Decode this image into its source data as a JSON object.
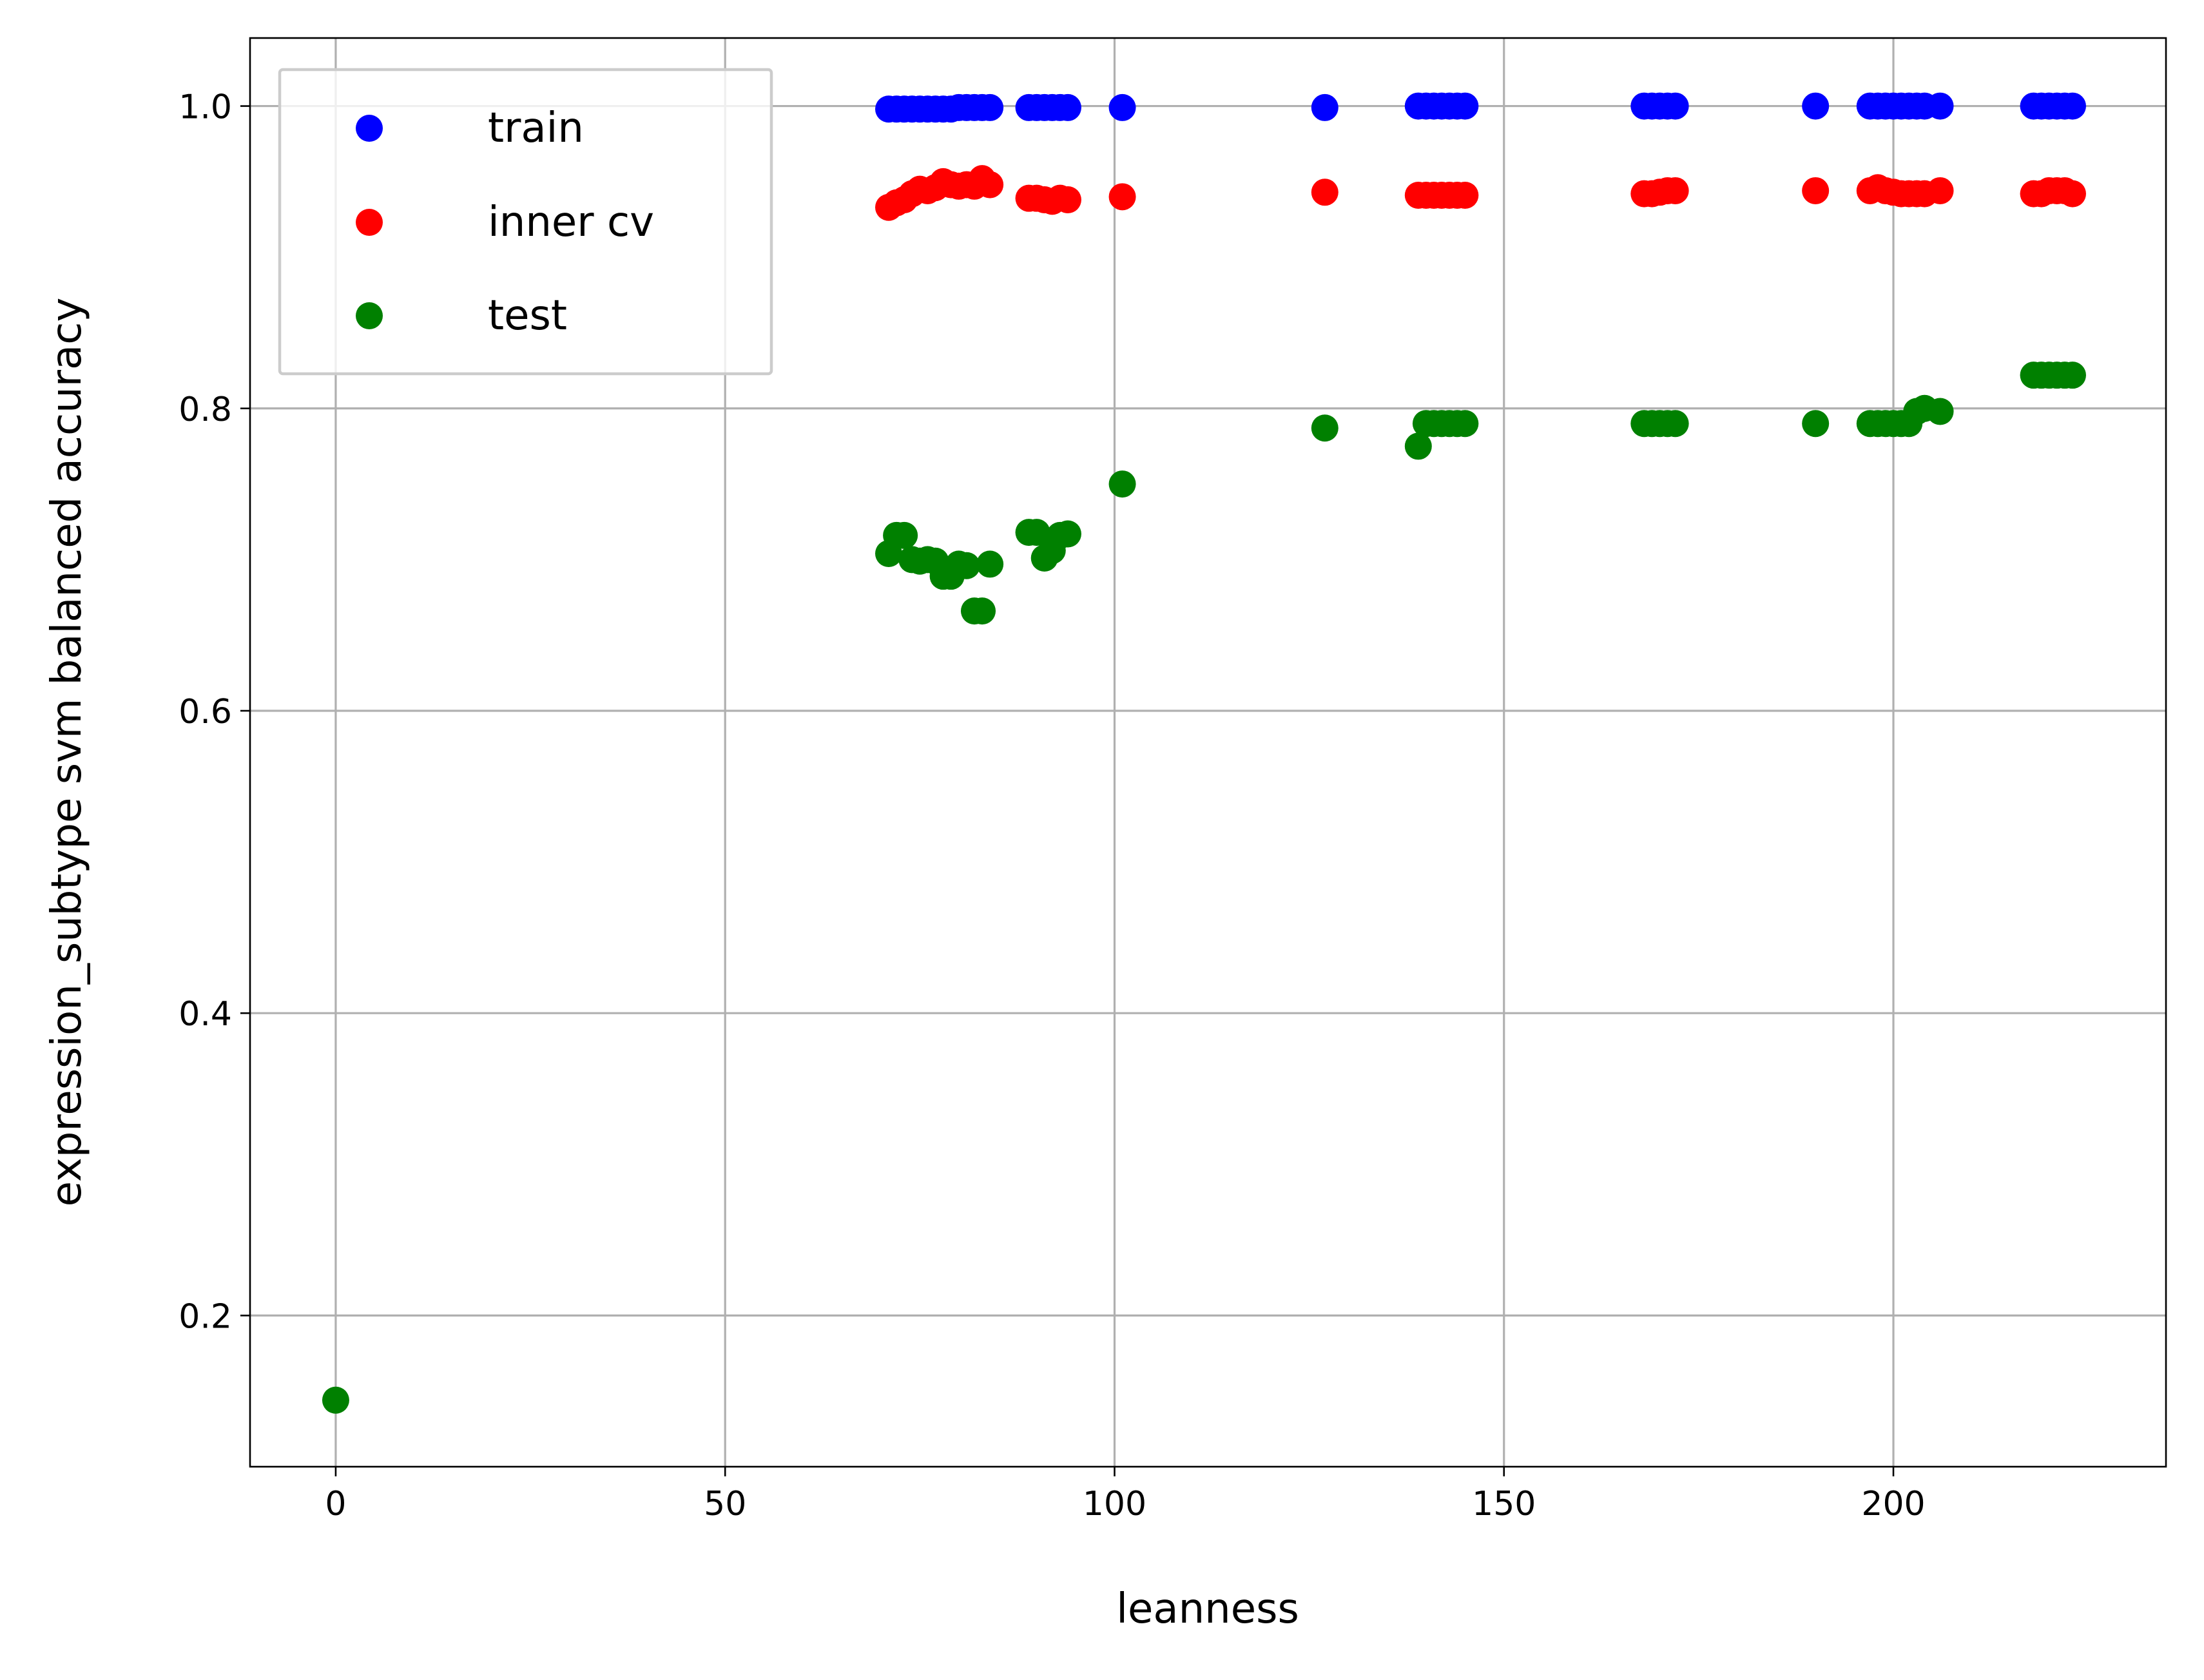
{
  "chart_data": {
    "type": "scatter",
    "title": "",
    "xlabel": "leanness",
    "ylabel": "expression_subtype svm balanced accuracy",
    "xlim": [
      -11,
      235
    ],
    "ylim": [
      0.1,
      1.045
    ],
    "xticks": [
      0,
      50,
      100,
      150,
      200
    ],
    "xtick_labels": [
      "0",
      "50",
      "100",
      "150",
      "200"
    ],
    "yticks": [
      0.2,
      0.4,
      0.6,
      0.8,
      1.0
    ],
    "ytick_labels": [
      "0.2",
      "0.4",
      "0.6",
      "0.8",
      "1.0"
    ],
    "grid": true,
    "legend_position": "top-left",
    "series": [
      {
        "name": "train",
        "color": "#0000ff",
        "points": [
          [
            71,
            0.998
          ],
          [
            72,
            0.998
          ],
          [
            73,
            0.998
          ],
          [
            74,
            0.998
          ],
          [
            75,
            0.998
          ],
          [
            76,
            0.998
          ],
          [
            77,
            0.998
          ],
          [
            78,
            0.998
          ],
          [
            79,
            0.998
          ],
          [
            80,
            0.999
          ],
          [
            81,
            0.999
          ],
          [
            82,
            0.999
          ],
          [
            83,
            0.999
          ],
          [
            84,
            0.999
          ],
          [
            89,
            0.999
          ],
          [
            90,
            0.999
          ],
          [
            91,
            0.999
          ],
          [
            92,
            0.999
          ],
          [
            93,
            0.999
          ],
          [
            94,
            0.999
          ],
          [
            101,
            0.999
          ],
          [
            127,
            0.999
          ],
          [
            139,
            1.0
          ],
          [
            140,
            1.0
          ],
          [
            141,
            1.0
          ],
          [
            142,
            1.0
          ],
          [
            143,
            1.0
          ],
          [
            144,
            1.0
          ],
          [
            145,
            1.0
          ],
          [
            168,
            1.0
          ],
          [
            169,
            1.0
          ],
          [
            170,
            1.0
          ],
          [
            171,
            1.0
          ],
          [
            172,
            1.0
          ],
          [
            190,
            1.0
          ],
          [
            197,
            1.0
          ],
          [
            198,
            1.0
          ],
          [
            199,
            1.0
          ],
          [
            200,
            1.0
          ],
          [
            201,
            1.0
          ],
          [
            202,
            1.0
          ],
          [
            203,
            1.0
          ],
          [
            204,
            1.0
          ],
          [
            206,
            1.0
          ],
          [
            218,
            1.0
          ],
          [
            219,
            1.0
          ],
          [
            220,
            1.0
          ],
          [
            221,
            1.0
          ],
          [
            222,
            1.0
          ],
          [
            223,
            1.0
          ]
        ]
      },
      {
        "name": "inner cv",
        "color": "#ff0000",
        "points": [
          [
            71,
            0.933
          ],
          [
            72,
            0.936
          ],
          [
            73,
            0.938
          ],
          [
            74,
            0.942
          ],
          [
            75,
            0.945
          ],
          [
            76,
            0.944
          ],
          [
            77,
            0.946
          ],
          [
            78,
            0.95
          ],
          [
            79,
            0.948
          ],
          [
            80,
            0.947
          ],
          [
            81,
            0.948
          ],
          [
            82,
            0.947
          ],
          [
            83,
            0.952
          ],
          [
            84,
            0.948
          ],
          [
            89,
            0.939
          ],
          [
            90,
            0.939
          ],
          [
            91,
            0.938
          ],
          [
            92,
            0.937
          ],
          [
            93,
            0.939
          ],
          [
            94,
            0.938
          ],
          [
            101,
            0.94
          ],
          [
            127,
            0.943
          ],
          [
            139,
            0.941
          ],
          [
            140,
            0.941
          ],
          [
            141,
            0.941
          ],
          [
            142,
            0.941
          ],
          [
            143,
            0.941
          ],
          [
            144,
            0.941
          ],
          [
            145,
            0.941
          ],
          [
            168,
            0.942
          ],
          [
            169,
            0.942
          ],
          [
            170,
            0.943
          ],
          [
            171,
            0.944
          ],
          [
            172,
            0.944
          ],
          [
            190,
            0.944
          ],
          [
            197,
            0.944
          ],
          [
            198,
            0.946
          ],
          [
            199,
            0.944
          ],
          [
            200,
            0.943
          ],
          [
            201,
            0.942
          ],
          [
            202,
            0.942
          ],
          [
            203,
            0.942
          ],
          [
            204,
            0.942
          ],
          [
            206,
            0.944
          ],
          [
            218,
            0.942
          ],
          [
            219,
            0.942
          ],
          [
            220,
            0.944
          ],
          [
            221,
            0.944
          ],
          [
            222,
            0.944
          ],
          [
            223,
            0.942
          ]
        ]
      },
      {
        "name": "test",
        "color": "#008000",
        "points": [
          [
            0,
            0.144
          ],
          [
            71,
            0.704
          ],
          [
            72,
            0.716
          ],
          [
            73,
            0.716
          ],
          [
            74,
            0.7
          ],
          [
            75,
            0.699
          ],
          [
            76,
            0.7
          ],
          [
            77,
            0.699
          ],
          [
            78,
            0.689
          ],
          [
            79,
            0.689
          ],
          [
            80,
            0.697
          ],
          [
            81,
            0.696
          ],
          [
            82,
            0.666
          ],
          [
            83,
            0.666
          ],
          [
            84,
            0.697
          ],
          [
            89,
            0.718
          ],
          [
            90,
            0.718
          ],
          [
            91,
            0.701
          ],
          [
            92,
            0.706
          ],
          [
            93,
            0.716
          ],
          [
            94,
            0.717
          ],
          [
            101,
            0.75
          ],
          [
            127,
            0.787
          ],
          [
            139,
            0.775
          ],
          [
            140,
            0.79
          ],
          [
            141,
            0.79
          ],
          [
            142,
            0.79
          ],
          [
            143,
            0.79
          ],
          [
            144,
            0.79
          ],
          [
            145,
            0.79
          ],
          [
            168,
            0.79
          ],
          [
            169,
            0.79
          ],
          [
            170,
            0.79
          ],
          [
            171,
            0.79
          ],
          [
            172,
            0.79
          ],
          [
            190,
            0.79
          ],
          [
            197,
            0.79
          ],
          [
            198,
            0.79
          ],
          [
            199,
            0.79
          ],
          [
            200,
            0.79
          ],
          [
            201,
            0.79
          ],
          [
            202,
            0.79
          ],
          [
            203,
            0.798
          ],
          [
            204,
            0.8
          ],
          [
            206,
            0.798
          ],
          [
            218,
            0.822
          ],
          [
            219,
            0.822
          ],
          [
            220,
            0.822
          ],
          [
            221,
            0.822
          ],
          [
            222,
            0.822
          ],
          [
            223,
            0.822
          ]
        ]
      }
    ]
  }
}
